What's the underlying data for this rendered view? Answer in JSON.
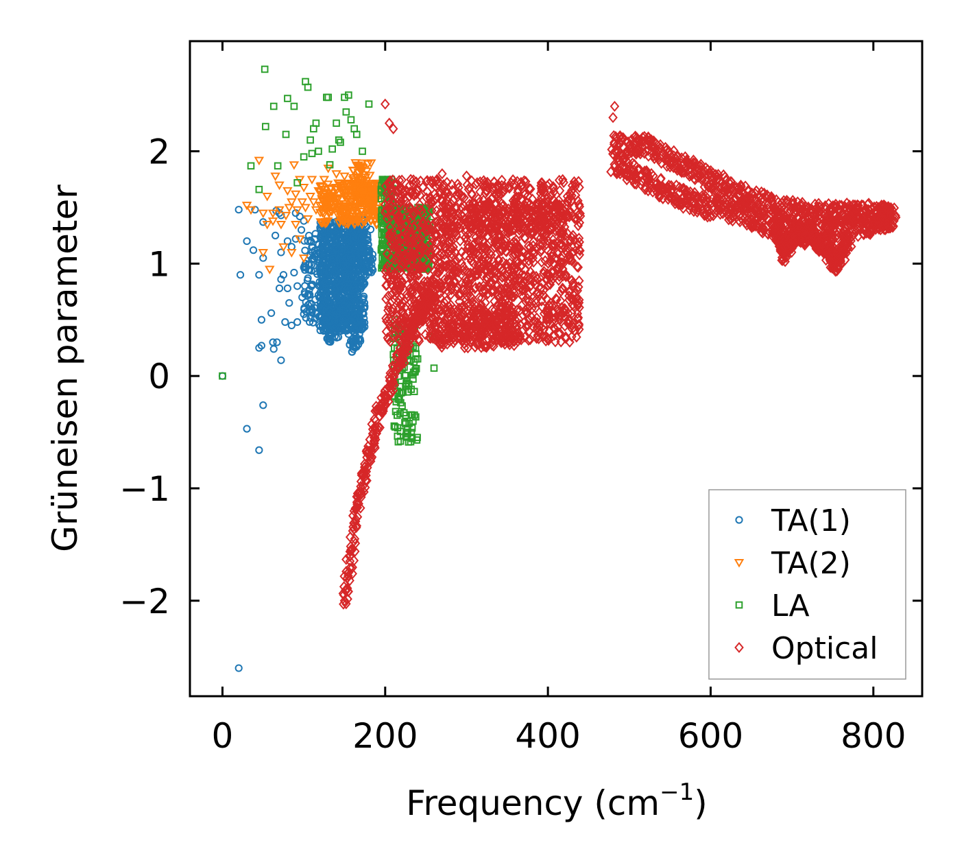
{
  "chart_data": {
    "type": "scatter",
    "title": "",
    "xlabel": "Frequency (cm",
    "xlabel_sup": "−1",
    "xlabel_end": ")",
    "ylabel": "Grüneisen parameter",
    "xlim": [
      -40,
      860
    ],
    "ylim": [
      -2.85,
      2.98
    ],
    "xticks": [
      0,
      200,
      400,
      600,
      800
    ],
    "xtick_labels": [
      "0",
      "200",
      "400",
      "600",
      "800"
    ],
    "yticks": [
      -2,
      -1,
      0,
      1,
      2
    ],
    "ytick_labels": [
      "−2",
      "−1",
      "0",
      "1",
      "2"
    ],
    "grid": false,
    "legend_position": "bottom-right",
    "series": [
      {
        "name": "TA(1)",
        "marker": "circle",
        "color": "#1f77b4",
        "points": [
          [
            0,
            0
          ],
          [
            20,
            1.48
          ],
          [
            22,
            0.9
          ],
          [
            20,
            -2.6
          ],
          [
            30,
            1.2
          ],
          [
            30,
            -0.47
          ],
          [
            38,
            1.12
          ],
          [
            40,
            1.48
          ],
          [
            45,
            0.9
          ],
          [
            45,
            0.25
          ],
          [
            45,
            -0.66
          ],
          [
            48,
            0.27
          ],
          [
            48,
            0.5
          ],
          [
            50,
            1.37
          ],
          [
            50,
            1.05
          ],
          [
            50,
            -0.26
          ],
          [
            60,
            0.56
          ],
          [
            62,
            0.3
          ],
          [
            63,
            0.24
          ],
          [
            65,
            1.25
          ],
          [
            66,
            1.47
          ],
          [
            67,
            0.3
          ],
          [
            70,
            1.45
          ],
          [
            70,
            0.78
          ],
          [
            72,
            0.14
          ],
          [
            72,
            1.43
          ],
          [
            72,
            1.1
          ],
          [
            72,
            0.86
          ],
          [
            75,
            0.9
          ],
          [
            77,
            0.48
          ],
          [
            80,
            0.78
          ],
          [
            80,
            1.2
          ],
          [
            82,
            0.65
          ],
          [
            85,
            1.15
          ],
          [
            85,
            0.45
          ],
          [
            88,
            0.92
          ],
          [
            90,
            1.45
          ],
          [
            90,
            1.22
          ],
          [
            92,
            0.48
          ],
          [
            92,
            0.8
          ],
          [
            95,
            1.42
          ],
          [
            97,
            1.3
          ],
          [
            98,
            0.7
          ],
          [
            100,
            1.38
          ],
          [
            100,
            0.55
          ],
          [
            102,
            1.0
          ],
          [
            105,
            0.87
          ],
          [
            105,
            1.2
          ]
        ],
        "clusters": [
          [
            120,
            175,
            0.4,
            1.4,
            700
          ],
          [
            128,
            145,
            0.3,
            0.6,
            60
          ],
          [
            155,
            170,
            0.2,
            0.55,
            60
          ],
          [
            100,
            165,
            0.45,
            1.3,
            250
          ],
          [
            170,
            185,
            0.85,
            1.35,
            60
          ]
        ]
      },
      {
        "name": "TA(2)",
        "marker": "triangle-down",
        "color": "#ff7f0e",
        "points": [
          [
            30,
            1.52
          ],
          [
            35,
            1.48
          ],
          [
            45,
            1.92
          ],
          [
            50,
            1.45
          ],
          [
            50,
            1.1
          ],
          [
            55,
            1.6
          ],
          [
            55,
            1.35
          ],
          [
            58,
            0.95
          ],
          [
            62,
            1.45
          ],
          [
            62,
            1.38
          ],
          [
            65,
            1.78
          ],
          [
            70,
            1.7
          ],
          [
            70,
            1.48
          ],
          [
            72,
            1.35
          ],
          [
            75,
            1.15
          ],
          [
            78,
            1.43
          ],
          [
            80,
            1.65
          ],
          [
            82,
            1.5
          ],
          [
            85,
            1.55
          ],
          [
            85,
            1.1
          ],
          [
            88,
            1.88
          ],
          [
            90,
            1.35
          ],
          [
            90,
            1.62
          ],
          [
            92,
            1.48
          ],
          [
            95,
            1.75
          ],
          [
            95,
            1.22
          ],
          [
            98,
            1.55
          ],
          [
            100,
            1.68
          ],
          [
            100,
            1.05
          ],
          [
            102,
            1.5
          ],
          [
            105,
            1.4
          ],
          [
            108,
            1.6
          ],
          [
            110,
            1.75
          ],
          [
            112,
            1.55
          ],
          [
            115,
            1.48
          ],
          [
            118,
            1.65
          ],
          [
            120,
            1.52
          ],
          [
            122,
            1.58
          ],
          [
            125,
            1.75
          ],
          [
            128,
            1.48
          ],
          [
            130,
            1.85
          ],
          [
            135,
            1.6
          ],
          [
            140,
            1.8
          ],
          [
            145,
            1.68
          ],
          [
            150,
            1.78
          ],
          [
            155,
            1.66
          ]
        ],
        "clusters": [
          [
            120,
            195,
            1.35,
            1.72,
            250
          ],
          [
            160,
            185,
            1.55,
            1.9,
            60
          ]
        ]
      },
      {
        "name": "LA",
        "marker": "square",
        "color": "#2ca02c",
        "points": [
          [
            0,
            0
          ],
          [
            35,
            1.87
          ],
          [
            45,
            1.66
          ],
          [
            52,
            2.73
          ],
          [
            53,
            2.22
          ],
          [
            63,
            2.4
          ],
          [
            68,
            1.87
          ],
          [
            78,
            2.15
          ],
          [
            80,
            2.47
          ],
          [
            88,
            2.4
          ],
          [
            92,
            1.72
          ],
          [
            100,
            1.95
          ],
          [
            102,
            2.62
          ],
          [
            105,
            2.57
          ],
          [
            108,
            2.1
          ],
          [
            110,
            1.98
          ],
          [
            112,
            2.2
          ],
          [
            115,
            2.25
          ],
          [
            118,
            2.0
          ],
          [
            128,
            2.48
          ],
          [
            130,
            2.48
          ],
          [
            132,
            1.88
          ],
          [
            135,
            2.02
          ],
          [
            140,
            2.25
          ],
          [
            143,
            2.1
          ],
          [
            145,
            2.08
          ],
          [
            150,
            2.48
          ],
          [
            152,
            2.35
          ],
          [
            155,
            2.5
          ],
          [
            158,
            2.28
          ],
          [
            162,
            2.2
          ],
          [
            165,
            2.15
          ],
          [
            172,
            2.0
          ],
          [
            180,
            2.42
          ],
          [
            250,
            0.7
          ],
          [
            258,
            0.35
          ],
          [
            260,
            0.07
          ]
        ],
        "clusters": [
          [
            195,
            255,
            0.95,
            1.5,
            500
          ],
          [
            195,
            210,
            1.35,
            1.75,
            60
          ],
          [
            210,
            240,
            -0.6,
            0.5,
            120
          ]
        ]
      },
      {
        "name": "Optical",
        "marker": "diamond",
        "color": "#d62728",
        "points": [
          [
            150,
            -2.0
          ],
          [
            153,
            -1.9
          ],
          [
            155,
            -1.75
          ],
          [
            157,
            -1.6
          ],
          [
            200,
            2.42
          ],
          [
            205,
            2.25
          ],
          [
            210,
            2.2
          ],
          [
            300,
            1.78
          ],
          [
            270,
            1.8
          ],
          [
            420,
            0.6
          ],
          [
            425,
            0.5
          ],
          [
            430,
            0.45
          ],
          [
            433,
            0.4
          ],
          [
            482,
            2.4
          ],
          [
            480,
            2.3
          ],
          [
            760,
            1.0
          ]
        ],
        "clusters": [
          [
            200,
            440,
            0.3,
            1.75,
            1600
          ],
          [
            260,
            360,
            0.25,
            0.6,
            200
          ],
          [
            300,
            420,
            1.3,
            1.55,
            150
          ]
        ],
        "branches": [
          [
            [
              150,
              -2.0
            ],
            [
              170,
              -1.0
            ],
            [
              190,
              -0.4
            ],
            [
              215,
              0.1
            ],
            [
              240,
              0.55
            ],
            [
              260,
              0.75
            ]
          ],
          [
            [
              480,
              2.05
            ],
            [
              520,
              2.05
            ],
            [
              560,
              1.9
            ],
            [
              600,
              1.75
            ],
            [
              640,
              1.6
            ],
            [
              680,
              1.5
            ],
            [
              720,
              1.45
            ],
            [
              760,
              1.45
            ],
            [
              800,
              1.45
            ],
            [
              825,
              1.42
            ]
          ],
          [
            [
              480,
              1.9
            ],
            [
              520,
              1.75
            ],
            [
              560,
              1.6
            ],
            [
              600,
              1.5
            ],
            [
              640,
              1.45
            ],
            [
              680,
              1.3
            ],
            [
              720,
              1.25
            ],
            [
              760,
              1.3
            ],
            [
              800,
              1.35
            ],
            [
              825,
              1.4
            ]
          ],
          [
            [
              680,
              1.4
            ],
            [
              690,
              1.1
            ],
            [
              700,
              1.25
            ],
            [
              720,
              1.3
            ],
            [
              740,
              1.15
            ],
            [
              755,
              1.0
            ],
            [
              770,
              1.2
            ]
          ]
        ]
      }
    ]
  }
}
